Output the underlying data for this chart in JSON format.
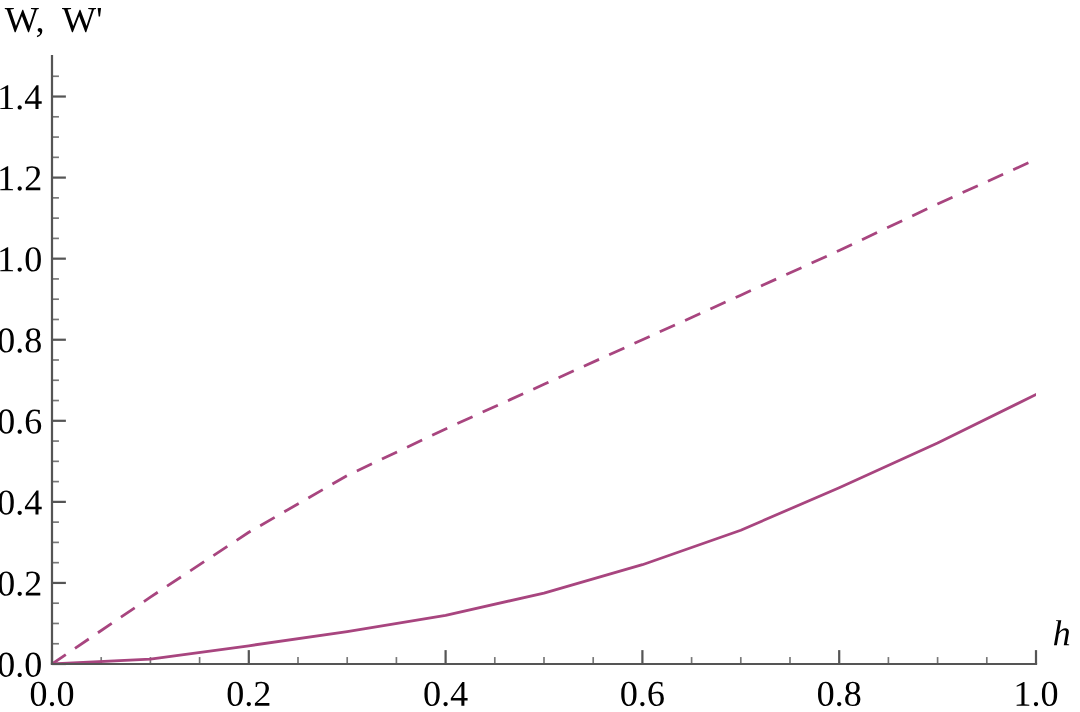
{
  "chart_data": {
    "type": "line",
    "xlabel": "h",
    "ylabel": "W,  W'",
    "x": [
      0,
      0.1,
      0.2,
      0.3,
      0.4,
      0.5,
      0.6,
      0.7,
      0.8,
      0.9,
      1.0
    ],
    "series": [
      {
        "color": "#a8457f",
        "line_style": "solid",
        "values": [
          0,
          0.012,
          0.045,
          0.08,
          0.12,
          0.175,
          0.245,
          0.33,
          0.435,
          0.545,
          0.665
        ]
      },
      {
        "color": "#a8457f",
        "line_style": "dashed",
        "values": [
          0,
          0.165,
          0.325,
          0.465,
          0.58,
          0.69,
          0.8,
          0.91,
          1.02,
          1.135,
          1.245
        ]
      }
    ],
    "xlim": [
      0,
      1
    ],
    "ylim": [
      0,
      1.5
    ],
    "xticks": [
      {
        "value": 0,
        "label": "0.0"
      },
      {
        "value": 0.05,
        "label": null
      },
      {
        "value": 0.1,
        "label": null
      },
      {
        "value": 0.15,
        "label": null
      },
      {
        "value": 0.2,
        "label": "0.2"
      },
      {
        "value": 0.25,
        "label": null
      },
      {
        "value": 0.3,
        "label": null
      },
      {
        "value": 0.35,
        "label": null
      },
      {
        "value": 0.4,
        "label": "0.4"
      },
      {
        "value": 0.45,
        "label": null
      },
      {
        "value": 0.5,
        "label": null
      },
      {
        "value": 0.55,
        "label": null
      },
      {
        "value": 0.6,
        "label": "0.6"
      },
      {
        "value": 0.65,
        "label": null
      },
      {
        "value": 0.7,
        "label": null
      },
      {
        "value": 0.75,
        "label": null
      },
      {
        "value": 0.8,
        "label": "0.8"
      },
      {
        "value": 0.85,
        "label": null
      },
      {
        "value": 0.9,
        "label": null
      },
      {
        "value": 0.95,
        "label": null
      },
      {
        "value": 1,
        "label": "1.0"
      }
    ],
    "yticks": [
      {
        "value": 0,
        "label": "0.0"
      },
      {
        "value": 0.05,
        "label": null
      },
      {
        "value": 0.1,
        "label": null
      },
      {
        "value": 0.15,
        "label": null
      },
      {
        "value": 0.2,
        "label": "0.2"
      },
      {
        "value": 0.25,
        "label": null
      },
      {
        "value": 0.3,
        "label": null
      },
      {
        "value": 0.35,
        "label": null
      },
      {
        "value": 0.4,
        "label": "0.4"
      },
      {
        "value": 0.45,
        "label": null
      },
      {
        "value": 0.5,
        "label": null
      },
      {
        "value": 0.55,
        "label": null
      },
      {
        "value": 0.6,
        "label": "0.6"
      },
      {
        "value": 0.65,
        "label": null
      },
      {
        "value": 0.7,
        "label": null
      },
      {
        "value": 0.75,
        "label": null
      },
      {
        "value": 0.8,
        "label": "0.8"
      },
      {
        "value": 0.85,
        "label": null
      },
      {
        "value": 0.9,
        "label": null
      },
      {
        "value": 0.95,
        "label": null
      },
      {
        "value": 1,
        "label": "1.0"
      },
      {
        "value": 1.05,
        "label": null
      },
      {
        "value": 1.1,
        "label": null
      },
      {
        "value": 1.15,
        "label": null
      },
      {
        "value": 1.2,
        "label": "1.2"
      },
      {
        "value": 1.25,
        "label": null
      },
      {
        "value": 1.3,
        "label": null
      },
      {
        "value": 1.35,
        "label": null
      },
      {
        "value": 1.4,
        "label": "1.4"
      },
      {
        "value": 1.45,
        "label": null
      }
    ],
    "grid": false,
    "legend": false,
    "marker": "none"
  }
}
